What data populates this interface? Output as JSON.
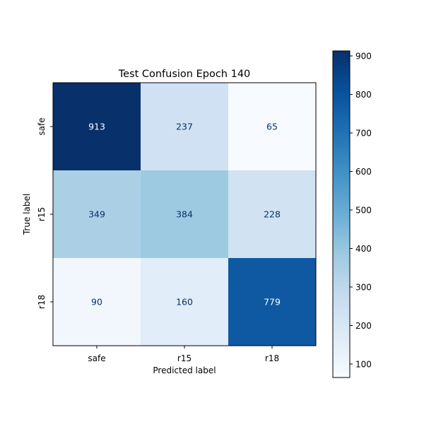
{
  "chart_data": {
    "type": "heatmap",
    "title": "Test Confusion Epoch 140",
    "xlabel": "Predicted label",
    "ylabel": "True label",
    "x_categories": [
      "safe",
      "r15",
      "r18"
    ],
    "y_categories": [
      "safe",
      "r15",
      "r18"
    ],
    "values": [
      [
        913,
        237,
        65
      ],
      [
        349,
        384,
        228
      ],
      [
        90,
        160,
        779
      ]
    ],
    "colormap": "Blues",
    "colorbar": {
      "range": [
        65,
        913
      ],
      "ticks": [
        100,
        200,
        300,
        400,
        500,
        600,
        700,
        800,
        900
      ]
    },
    "text_colors": {
      "dark": "#08306b",
      "light": "#ffffff"
    }
  }
}
